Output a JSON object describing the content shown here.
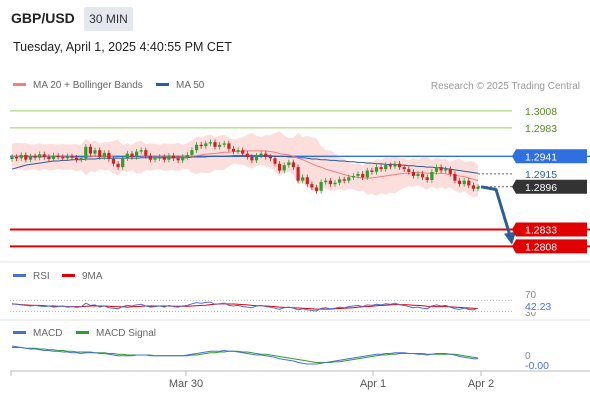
{
  "header": {
    "symbol": "GBP/USD",
    "timeframe": "30 MIN",
    "datetime": "Tuesday, April 1, 2025 4:40:55 PM CET"
  },
  "legend": {
    "ma20_label": "MA 20 + Bollinger Bands",
    "ma20_color": "#f08080",
    "ma50_label": "MA 50",
    "ma50_color": "#2c5d96",
    "credit": "Research © 2025 Trading Central"
  },
  "colors": {
    "bull": "#2e9e2e",
    "bear": "#cc2222",
    "resistance": "#9ccc65",
    "support": "#e00000",
    "pivot": "#2f6fe0",
    "arrow": "#2c5d96",
    "last": "#333333"
  },
  "chart_data": [
    {
      "type": "candlestick",
      "symbol": "GBP/USD",
      "timeframe": "30 MIN",
      "x_tick_labels": [
        "Mar 30",
        "Apr 1",
        "Apr 2"
      ],
      "ylim": [
        1.2785,
        1.303
      ],
      "levels": [
        {
          "value": 1.3008,
          "label": "1.3008",
          "kind": "resistance"
        },
        {
          "value": 1.2983,
          "label": "1.2983",
          "kind": "resistance"
        },
        {
          "value": 1.2941,
          "label": "1.2941",
          "kind": "pivot"
        },
        {
          "value": 1.2915,
          "label": "1.2915",
          "kind": "plain"
        },
        {
          "value": 1.2896,
          "label": "1.2896",
          "kind": "last"
        },
        {
          "value": 1.2833,
          "label": "1.2833",
          "kind": "support"
        },
        {
          "value": 1.2808,
          "label": "1.2808",
          "kind": "support"
        }
      ],
      "close": [
        1.294,
        1.2938,
        1.2943,
        1.2936,
        1.2941,
        1.2939,
        1.2944,
        1.294,
        1.2937,
        1.2942,
        1.294,
        1.2938,
        1.2941,
        1.2939,
        1.2936,
        1.2938,
        1.2955,
        1.2945,
        1.295,
        1.294,
        1.2946,
        1.2937,
        1.293,
        1.2925,
        1.2938,
        1.2945,
        1.294,
        1.2948,
        1.295,
        1.2942,
        1.2936,
        1.2938,
        1.294,
        1.2936,
        1.2942,
        1.2938,
        1.2935,
        1.294,
        1.2943,
        1.295,
        1.2958,
        1.2956,
        1.296,
        1.2962,
        1.2955,
        1.2958,
        1.296,
        1.2952,
        1.2948,
        1.295,
        1.2945,
        1.294,
        1.2935,
        1.2942,
        1.2945,
        1.294,
        1.2938,
        1.293,
        1.292,
        1.2928,
        1.2932,
        1.2925,
        1.2905,
        1.291,
        1.29,
        1.2895,
        1.289,
        1.2903,
        1.2905,
        1.29,
        1.2902,
        1.2907,
        1.2905,
        1.291,
        1.2912,
        1.2915,
        1.291,
        1.292,
        1.2918,
        1.2925,
        1.2922,
        1.2928,
        1.2926,
        1.293,
        1.2925,
        1.2922,
        1.2918,
        1.2912,
        1.2915,
        1.291,
        1.2906,
        1.2918,
        1.2925,
        1.292,
        1.2922,
        1.2915,
        1.2905,
        1.29,
        1.2905,
        1.2898,
        1.2893,
        1.2896
      ],
      "ma20": [
        1.2941,
        1.2941,
        1.2941,
        1.294,
        1.294,
        1.294,
        1.294,
        1.294,
        1.294,
        1.294,
        1.294,
        1.294,
        1.294,
        1.294,
        1.2939,
        1.2939,
        1.294,
        1.294,
        1.2941,
        1.2941,
        1.2941,
        1.2941,
        1.294,
        1.2939,
        1.2939,
        1.2939,
        1.2939,
        1.2939,
        1.294,
        1.294,
        1.294,
        1.294,
        1.294,
        1.294,
        1.294,
        1.294,
        1.294,
        1.294,
        1.2941,
        1.2941,
        1.2942,
        1.2943,
        1.2944,
        1.2945,
        1.2945,
        1.2946,
        1.2947,
        1.2947,
        1.2948,
        1.2948,
        1.2949,
        1.2949,
        1.2949,
        1.2949,
        1.2949,
        1.2949,
        1.2948,
        1.2947,
        1.2945,
        1.2944,
        1.2943,
        1.2941,
        1.2938,
        1.2936,
        1.2933,
        1.293,
        1.2927,
        1.2925,
        1.2922,
        1.292,
        1.2918,
        1.2916,
        1.2914,
        1.2912,
        1.2911,
        1.291,
        1.2909,
        1.2909,
        1.2909,
        1.291,
        1.2911,
        1.2912,
        1.2913,
        1.2914,
        1.2915,
        1.2916,
        1.2916,
        1.2917,
        1.2917,
        1.2917,
        1.2916,
        1.2916,
        1.2916,
        1.2916,
        1.2915,
        1.2914,
        1.2913,
        1.2912,
        1.2911,
        1.2909,
        1.2907,
        1.2905
      ],
      "ma50": [
        1.2922,
        1.2924,
        1.2926,
        1.2928,
        1.2929,
        1.293,
        1.2931,
        1.2932,
        1.2933,
        1.2934,
        1.2934,
        1.2935,
        1.2935,
        1.2936,
        1.2936,
        1.2936,
        1.2937,
        1.2937,
        1.2937,
        1.2938,
        1.2938,
        1.2938,
        1.2938,
        1.2938,
        1.2938,
        1.2938,
        1.2938,
        1.2938,
        1.2939,
        1.2939,
        1.2939,
        1.2939,
        1.2939,
        1.2939,
        1.2939,
        1.2939,
        1.2939,
        1.2939,
        1.2939,
        1.294,
        1.294,
        1.294,
        1.294,
        1.2941,
        1.2941,
        1.2941,
        1.2941,
        1.2941,
        1.2942,
        1.2942,
        1.2942,
        1.2942,
        1.2942,
        1.2942,
        1.2942,
        1.2942,
        1.2942,
        1.2941,
        1.2941,
        1.2941,
        1.294,
        1.294,
        1.2939,
        1.2939,
        1.2938,
        1.2937,
        1.2937,
        1.2936,
        1.2936,
        1.2935,
        1.2935,
        1.2934,
        1.2934,
        1.2933,
        1.2933,
        1.2932,
        1.2932,
        1.2931,
        1.2931,
        1.293,
        1.293,
        1.2929,
        1.2929,
        1.2929,
        1.2928,
        1.2928,
        1.2927,
        1.2927,
        1.2926,
        1.2926,
        1.2925,
        1.2925,
        1.2924,
        1.2924,
        1.2923,
        1.2922,
        1.2921,
        1.292,
        1.2919,
        1.2918,
        1.2917,
        1.2916
      ]
    },
    {
      "type": "line",
      "name": "RSI",
      "legend": [
        "RSI",
        "9MA"
      ],
      "colors": [
        "#4a6fdc",
        "#e00000"
      ],
      "ylim": [
        0,
        100
      ],
      "levels": [
        {
          "value": 70,
          "label": "70"
        },
        {
          "value": 30,
          "label": "30"
        }
      ],
      "last_value_label": "42.23",
      "rsi": [
        58,
        56,
        54,
        52,
        50,
        52,
        50,
        48,
        50,
        46,
        48,
        50,
        46,
        48,
        45,
        47,
        60,
        52,
        54,
        46,
        50,
        44,
        42,
        40,
        48,
        52,
        50,
        54,
        56,
        50,
        46,
        48,
        50,
        46,
        52,
        48,
        46,
        50,
        52,
        58,
        62,
        60,
        63,
        64,
        56,
        58,
        60,
        52,
        50,
        52,
        48,
        46,
        44,
        50,
        52,
        48,
        46,
        42,
        38,
        44,
        46,
        42,
        36,
        40,
        36,
        34,
        32,
        42,
        44,
        40,
        42,
        46,
        44,
        48,
        50,
        52,
        48,
        54,
        52,
        56,
        54,
        58,
        56,
        60,
        54,
        52,
        48,
        44,
        46,
        42,
        40,
        50,
        54,
        50,
        52,
        46,
        40,
        38,
        42,
        38,
        36,
        42.23
      ],
      "ma9": [
        57,
        56,
        55,
        54,
        53,
        52,
        52,
        51,
        50,
        50,
        49,
        49,
        48,
        48,
        48,
        48,
        49,
        50,
        50,
        50,
        50,
        49,
        48,
        47,
        47,
        46,
        47,
        48,
        49,
        50,
        50,
        50,
        50,
        50,
        50,
        49,
        49,
        49,
        49,
        50,
        51,
        52,
        53,
        55,
        56,
        57,
        58,
        57,
        57,
        56,
        55,
        54,
        52,
        51,
        51,
        50,
        49,
        48,
        46,
        45,
        45,
        44,
        43,
        42,
        41,
        40,
        39,
        39,
        39,
        39,
        40,
        41,
        42,
        43,
        44,
        46,
        47,
        48,
        49,
        51,
        52,
        53,
        54,
        55,
        55,
        55,
        54,
        53,
        52,
        51,
        49,
        48,
        48,
        48,
        48,
        47,
        46,
        45,
        44,
        43,
        42,
        41
      ]
    },
    {
      "type": "line",
      "name": "MACD",
      "legend": [
        "MACD",
        "MACD Signal"
      ],
      "colors": [
        "#4a6fdc",
        "#2e9e2e"
      ],
      "zero_label": "0",
      "last_value_label": "-0.00",
      "ylim": [
        -0.0014,
        0.0016
      ],
      "macd": [
        0.0012,
        0.0011,
        0.001,
        0.0009,
        0.0008,
        0.0008,
        0.0007,
        0.0006,
        0.0006,
        0.0005,
        0.0005,
        0.0004,
        0.0004,
        0.0003,
        0.0003,
        0.0002,
        0.0003,
        0.0003,
        0.0003,
        0.0002,
        0.0002,
        0.0001,
        0.0,
        -0.0001,
        -0.0001,
        -0.0001,
        -0.0001,
        0.0,
        0.0,
        0.0,
        -0.0001,
        -0.0001,
        -0.0001,
        -0.0001,
        -0.0001,
        -0.0001,
        -0.0001,
        -0.0001,
        0.0,
        0.0001,
        0.0002,
        0.0003,
        0.0004,
        0.0005,
        0.0005,
        0.0005,
        0.0006,
        0.0005,
        0.0005,
        0.0004,
        0.0003,
        0.0002,
        0.0001,
        0.0,
        0.0,
        -0.0001,
        -0.0002,
        -0.0003,
        -0.0005,
        -0.0006,
        -0.0007,
        -0.0008,
        -0.001,
        -0.0011,
        -0.0012,
        -0.0012,
        -0.0012,
        -0.0011,
        -0.001,
        -0.0009,
        -0.0008,
        -0.0007,
        -0.0006,
        -0.0005,
        -0.0004,
        -0.0003,
        -0.0002,
        -0.0001,
        0.0,
        0.0001,
        0.0001,
        0.0002,
        0.0002,
        0.0003,
        0.0003,
        0.0003,
        0.0002,
        0.0002,
        0.0001,
        0.0001,
        0.0,
        0.0001,
        0.0002,
        0.0002,
        0.0002,
        0.0001,
        0.0,
        -0.0002,
        -0.0003,
        -0.0004,
        -0.0005,
        -0.0005
      ],
      "signal": [
        0.001,
        0.001,
        0.001,
        0.0009,
        0.0009,
        0.0009,
        0.0008,
        0.0008,
        0.0007,
        0.0007,
        0.0006,
        0.0006,
        0.0005,
        0.0005,
        0.0004,
        0.0004,
        0.0004,
        0.0004,
        0.0003,
        0.0003,
        0.0003,
        0.0002,
        0.0002,
        0.0001,
        0.0001,
        0.0,
        0.0,
        0.0,
        0.0,
        0.0,
        0.0,
        -0.0001,
        -0.0001,
        -0.0001,
        -0.0001,
        -0.0001,
        -0.0001,
        -0.0001,
        -0.0001,
        0.0,
        0.0,
        0.0001,
        0.0002,
        0.0003,
        0.0003,
        0.0004,
        0.0004,
        0.0005,
        0.0005,
        0.0005,
        0.0004,
        0.0004,
        0.0003,
        0.0002,
        0.0001,
        0.0001,
        0.0,
        -0.0001,
        -0.0002,
        -0.0003,
        -0.0004,
        -0.0005,
        -0.0006,
        -0.0007,
        -0.0008,
        -0.0009,
        -0.001,
        -0.001,
        -0.001,
        -0.001,
        -0.0009,
        -0.0009,
        -0.0008,
        -0.0007,
        -0.0006,
        -0.0005,
        -0.0004,
        -0.0003,
        -0.0002,
        -0.0001,
        0.0,
        0.0,
        0.0001,
        0.0001,
        0.0002,
        0.0002,
        0.0002,
        0.0002,
        0.0002,
        0.0002,
        0.0001,
        0.0001,
        0.0001,
        0.0001,
        0.0001,
        0.0001,
        0.0001,
        0.0,
        -0.0001,
        -0.0002,
        -0.0003,
        -0.0004
      ]
    }
  ]
}
